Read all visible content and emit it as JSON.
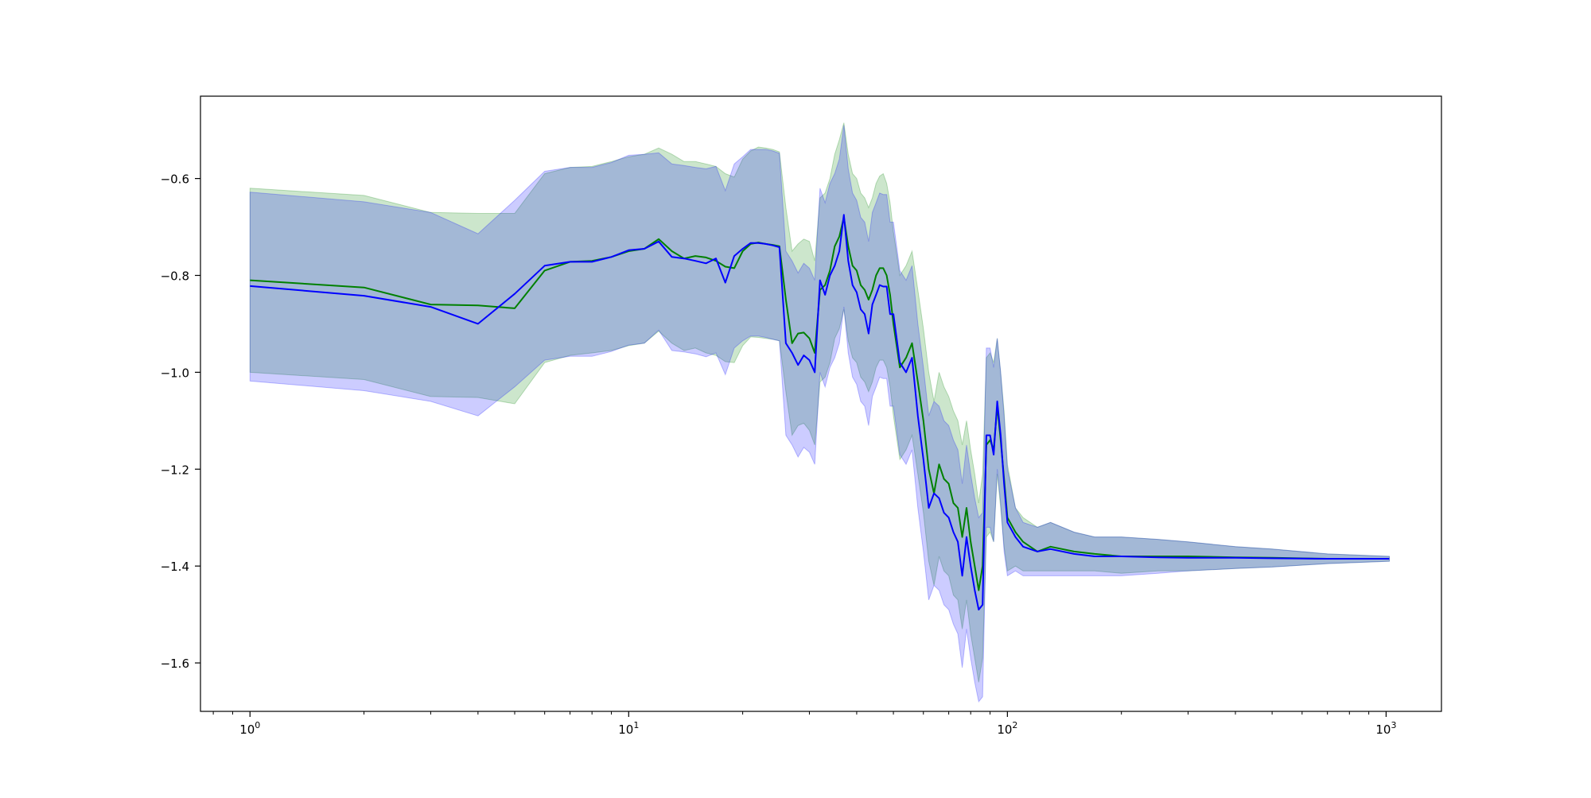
{
  "chart_data": {
    "type": "line",
    "title": "",
    "xlabel": "",
    "ylabel": "",
    "xscale": "log",
    "xlim": [
      0.74,
      1400
    ],
    "ylim": [
      -1.7,
      -0.43
    ],
    "grid": false,
    "legend": "none",
    "x_ticks": [
      {
        "value": 1,
        "base": "10",
        "exp": "0"
      },
      {
        "value": 10,
        "base": "10",
        "exp": "1"
      },
      {
        "value": 100,
        "base": "10",
        "exp": "2"
      },
      {
        "value": 1000,
        "base": "10",
        "exp": "3"
      }
    ],
    "y_ticks": [
      {
        "value": -0.6,
        "label": "−0.6"
      },
      {
        "value": -0.8,
        "label": "−0.8"
      },
      {
        "value": -1.0,
        "label": "−1.0"
      },
      {
        "value": -1.2,
        "label": "−1.2"
      },
      {
        "value": -1.4,
        "label": "−1.4"
      },
      {
        "value": -1.6,
        "label": "−1.6"
      }
    ],
    "series": [
      {
        "color": "#008000",
        "band_color": "#008000",
        "band_opacity": 0.2,
        "points": [
          [
            1,
            -0.81,
            -0.62,
            -1.0
          ],
          [
            2,
            -0.825,
            -0.635,
            -1.015
          ],
          [
            3,
            -0.86,
            -0.67,
            -1.05
          ],
          [
            4,
            -0.862,
            -0.672,
            -1.052
          ],
          [
            5,
            -0.868,
            -0.672,
            -1.065
          ],
          [
            6,
            -0.79,
            -0.59,
            -0.98
          ],
          [
            7,
            -0.772,
            -0.577,
            -0.965
          ],
          [
            8,
            -0.77,
            -0.575,
            -0.96
          ],
          [
            9,
            -0.762,
            -0.565,
            -0.955
          ],
          [
            10,
            -0.75,
            -0.555,
            -0.945
          ],
          [
            11,
            -0.745,
            -0.55,
            -0.94
          ],
          [
            12,
            -0.725,
            -0.537,
            -0.915
          ],
          [
            13,
            -0.75,
            -0.55,
            -0.94
          ],
          [
            14,
            -0.765,
            -0.565,
            -0.955
          ],
          [
            15,
            -0.76,
            -0.565,
            -0.95
          ],
          [
            16,
            -0.763,
            -0.57,
            -0.96
          ],
          [
            17,
            -0.77,
            -0.575,
            -0.965
          ],
          [
            18,
            -0.782,
            -0.59,
            -0.978
          ],
          [
            19,
            -0.785,
            -0.597,
            -0.98
          ],
          [
            20,
            -0.75,
            -0.56,
            -0.945
          ],
          [
            21,
            -0.735,
            -0.543,
            -0.927
          ],
          [
            22,
            -0.732,
            -0.535,
            -0.928
          ],
          [
            23,
            -0.735,
            -0.537,
            -0.93
          ],
          [
            24,
            -0.737,
            -0.54,
            -0.932
          ],
          [
            25,
            -0.74,
            -0.545,
            -0.935
          ],
          [
            26,
            -0.85,
            -0.66,
            -1.04
          ],
          [
            27,
            -0.94,
            -0.75,
            -1.13
          ],
          [
            28,
            -0.92,
            -0.735,
            -1.11
          ],
          [
            29,
            -0.918,
            -0.725,
            -1.105
          ],
          [
            30,
            -0.93,
            -0.73,
            -1.12
          ],
          [
            31,
            -0.96,
            -0.77,
            -1.15
          ],
          [
            32,
            -0.83,
            -0.64,
            -1.02
          ],
          [
            33,
            -0.82,
            -0.63,
            -1.01
          ],
          [
            34,
            -0.79,
            -0.6,
            -0.98
          ],
          [
            35,
            -0.74,
            -0.55,
            -0.93
          ],
          [
            36,
            -0.72,
            -0.52,
            -0.91
          ],
          [
            37,
            -0.68,
            -0.485,
            -0.87
          ],
          [
            38,
            -0.74,
            -0.55,
            -0.935
          ],
          [
            39,
            -0.78,
            -0.59,
            -0.97
          ],
          [
            40,
            -0.79,
            -0.6,
            -0.98
          ],
          [
            41,
            -0.82,
            -0.63,
            -1.01
          ],
          [
            42,
            -0.83,
            -0.64,
            -1.02
          ],
          [
            43,
            -0.85,
            -0.66,
            -1.04
          ],
          [
            44,
            -0.83,
            -0.64,
            -1.02
          ],
          [
            45,
            -0.8,
            -0.61,
            -0.99
          ],
          [
            46,
            -0.785,
            -0.595,
            -0.975
          ],
          [
            47,
            -0.785,
            -0.59,
            -0.975
          ],
          [
            48,
            -0.8,
            -0.61,
            -0.99
          ],
          [
            49,
            -0.84,
            -0.65,
            -1.03
          ],
          [
            50,
            -0.9,
            -0.71,
            -1.09
          ],
          [
            52,
            -0.99,
            -0.8,
            -1.18
          ],
          [
            54,
            -0.97,
            -0.78,
            -1.16
          ],
          [
            56,
            -0.94,
            -0.75,
            -1.13
          ],
          [
            58,
            -1.02,
            -0.83,
            -1.21
          ],
          [
            60,
            -1.1,
            -0.91,
            -1.29
          ],
          [
            62,
            -1.2,
            -1.0,
            -1.39
          ],
          [
            64,
            -1.25,
            -1.06,
            -1.44
          ],
          [
            66,
            -1.19,
            -1.0,
            -1.38
          ],
          [
            68,
            -1.22,
            -1.03,
            -1.41
          ],
          [
            70,
            -1.23,
            -1.05,
            -1.42
          ],
          [
            72,
            -1.27,
            -1.08,
            -1.46
          ],
          [
            74,
            -1.28,
            -1.1,
            -1.47
          ],
          [
            76,
            -1.34,
            -1.15,
            -1.53
          ],
          [
            78,
            -1.28,
            -1.1,
            -1.47
          ],
          [
            80,
            -1.35,
            -1.16,
            -1.54
          ],
          [
            82,
            -1.4,
            -1.21,
            -1.59
          ],
          [
            84,
            -1.45,
            -1.27,
            -1.64
          ],
          [
            86,
            -1.4,
            -1.21,
            -1.59
          ],
          [
            88,
            -1.15,
            -0.97,
            -1.34
          ],
          [
            90,
            -1.14,
            -0.96,
            -1.33
          ],
          [
            92,
            -1.16,
            -0.98,
            -1.35
          ],
          [
            94,
            -1.07,
            -0.93,
            -1.21
          ],
          [
            96,
            -1.14,
            -1.0,
            -1.28
          ],
          [
            98,
            -1.22,
            -1.08,
            -1.36
          ],
          [
            100,
            -1.3,
            -1.19,
            -1.41
          ],
          [
            105,
            -1.33,
            -1.28,
            -1.4
          ],
          [
            110,
            -1.35,
            -1.3,
            -1.41
          ],
          [
            120,
            -1.37,
            -1.32,
            -1.41
          ],
          [
            130,
            -1.36,
            -1.31,
            -1.41
          ],
          [
            150,
            -1.37,
            -1.33,
            -1.41
          ],
          [
            170,
            -1.375,
            -1.34,
            -1.41
          ],
          [
            200,
            -1.38,
            -1.34,
            -1.415
          ],
          [
            250,
            -1.38,
            -1.345,
            -1.41
          ],
          [
            300,
            -1.38,
            -1.35,
            -1.41
          ],
          [
            400,
            -1.382,
            -1.36,
            -1.405
          ],
          [
            500,
            -1.383,
            -1.365,
            -1.402
          ],
          [
            700,
            -1.385,
            -1.375,
            -1.395
          ],
          [
            1020,
            -1.385,
            -1.38,
            -1.39
          ]
        ]
      },
      {
        "color": "#0000ff",
        "band_color": "#0000ff",
        "band_opacity": 0.2,
        "points": [
          [
            1,
            -0.822,
            -0.628,
            -1.018
          ],
          [
            2,
            -0.842,
            -0.648,
            -1.038
          ],
          [
            3,
            -0.865,
            -0.67,
            -1.06
          ],
          [
            4,
            -0.9,
            -0.714,
            -1.09
          ],
          [
            5,
            -0.838,
            -0.645,
            -1.03
          ],
          [
            6,
            -0.78,
            -0.585,
            -0.975
          ],
          [
            7,
            -0.772,
            -0.577,
            -0.967
          ],
          [
            8,
            -0.772,
            -0.577,
            -0.967
          ],
          [
            9,
            -0.762,
            -0.567,
            -0.957
          ],
          [
            10,
            -0.748,
            -0.552,
            -0.944
          ],
          [
            11,
            -0.745,
            -0.55,
            -0.94
          ],
          [
            12,
            -0.73,
            -0.547,
            -0.913
          ],
          [
            13,
            -0.762,
            -0.57,
            -0.955
          ],
          [
            14,
            -0.765,
            -0.573,
            -0.958
          ],
          [
            15,
            -0.77,
            -0.577,
            -0.962
          ],
          [
            16,
            -0.775,
            -0.58,
            -0.968
          ],
          [
            17,
            -0.765,
            -0.575,
            -0.96
          ],
          [
            18,
            -0.815,
            -0.625,
            -1.005
          ],
          [
            19,
            -0.76,
            -0.57,
            -0.95
          ],
          [
            20,
            -0.745,
            -0.555,
            -0.935
          ],
          [
            21,
            -0.733,
            -0.54,
            -0.925
          ],
          [
            22,
            -0.733,
            -0.54,
            -0.925
          ],
          [
            23,
            -0.735,
            -0.54,
            -0.928
          ],
          [
            24,
            -0.738,
            -0.543,
            -0.932
          ],
          [
            25,
            -0.742,
            -0.548,
            -0.935
          ],
          [
            26,
            -0.94,
            -0.75,
            -1.13
          ],
          [
            27,
            -0.96,
            -0.77,
            -1.15
          ],
          [
            28,
            -0.985,
            -0.795,
            -1.175
          ],
          [
            29,
            -0.965,
            -0.775,
            -1.155
          ],
          [
            30,
            -0.975,
            -0.785,
            -1.165
          ],
          [
            31,
            -1.0,
            -0.81,
            -1.19
          ],
          [
            32,
            -0.81,
            -0.62,
            -1.0
          ],
          [
            33,
            -0.84,
            -0.65,
            -1.03
          ],
          [
            34,
            -0.8,
            -0.61,
            -0.99
          ],
          [
            35,
            -0.78,
            -0.59,
            -0.97
          ],
          [
            36,
            -0.75,
            -0.56,
            -0.94
          ],
          [
            37,
            -0.675,
            -0.49,
            -0.865
          ],
          [
            38,
            -0.77,
            -0.58,
            -0.96
          ],
          [
            39,
            -0.82,
            -0.63,
            -1.01
          ],
          [
            40,
            -0.835,
            -0.645,
            -1.025
          ],
          [
            41,
            -0.87,
            -0.68,
            -1.06
          ],
          [
            42,
            -0.88,
            -0.69,
            -1.07
          ],
          [
            43,
            -0.92,
            -0.73,
            -1.11
          ],
          [
            44,
            -0.86,
            -0.67,
            -1.05
          ],
          [
            45,
            -0.84,
            -0.65,
            -1.03
          ],
          [
            46,
            -0.82,
            -0.63,
            -1.01
          ],
          [
            47,
            -0.823,
            -0.633,
            -1.013
          ],
          [
            48,
            -0.823,
            -0.633,
            -1.013
          ],
          [
            49,
            -0.88,
            -0.69,
            -1.07
          ],
          [
            50,
            -0.88,
            -0.69,
            -1.07
          ],
          [
            52,
            -0.98,
            -0.79,
            -1.17
          ],
          [
            54,
            -1.0,
            -0.81,
            -1.19
          ],
          [
            56,
            -0.97,
            -0.78,
            -1.16
          ],
          [
            58,
            -1.09,
            -0.9,
            -1.28
          ],
          [
            60,
            -1.18,
            -0.99,
            -1.37
          ],
          [
            62,
            -1.28,
            -1.09,
            -1.47
          ],
          [
            64,
            -1.25,
            -1.06,
            -1.44
          ],
          [
            66,
            -1.26,
            -1.07,
            -1.45
          ],
          [
            68,
            -1.29,
            -1.1,
            -1.48
          ],
          [
            70,
            -1.3,
            -1.11,
            -1.49
          ],
          [
            72,
            -1.33,
            -1.14,
            -1.52
          ],
          [
            74,
            -1.35,
            -1.16,
            -1.54
          ],
          [
            76,
            -1.42,
            -1.23,
            -1.61
          ],
          [
            78,
            -1.34,
            -1.15,
            -1.53
          ],
          [
            80,
            -1.4,
            -1.21,
            -1.59
          ],
          [
            82,
            -1.45,
            -1.26,
            -1.64
          ],
          [
            84,
            -1.49,
            -1.3,
            -1.68
          ],
          [
            86,
            -1.48,
            -1.29,
            -1.67
          ],
          [
            88,
            -1.13,
            -0.95,
            -1.32
          ],
          [
            90,
            -1.13,
            -0.95,
            -1.32
          ],
          [
            92,
            -1.17,
            -0.99,
            -1.35
          ],
          [
            94,
            -1.06,
            -0.93,
            -1.2
          ],
          [
            96,
            -1.13,
            -1.0,
            -1.27
          ],
          [
            98,
            -1.23,
            -1.09,
            -1.37
          ],
          [
            100,
            -1.31,
            -1.2,
            -1.42
          ],
          [
            105,
            -1.34,
            -1.28,
            -1.41
          ],
          [
            110,
            -1.36,
            -1.31,
            -1.42
          ],
          [
            120,
            -1.37,
            -1.32,
            -1.42
          ],
          [
            130,
            -1.365,
            -1.31,
            -1.42
          ],
          [
            150,
            -1.375,
            -1.33,
            -1.42
          ],
          [
            170,
            -1.38,
            -1.34,
            -1.42
          ],
          [
            200,
            -1.38,
            -1.34,
            -1.42
          ],
          [
            250,
            -1.382,
            -1.345,
            -1.415
          ],
          [
            300,
            -1.383,
            -1.35,
            -1.41
          ],
          [
            400,
            -1.383,
            -1.36,
            -1.405
          ],
          [
            500,
            -1.384,
            -1.365,
            -1.402
          ],
          [
            700,
            -1.385,
            -1.375,
            -1.395
          ],
          [
            1020,
            -1.385,
            -1.38,
            -1.39
          ]
        ]
      }
    ]
  }
}
